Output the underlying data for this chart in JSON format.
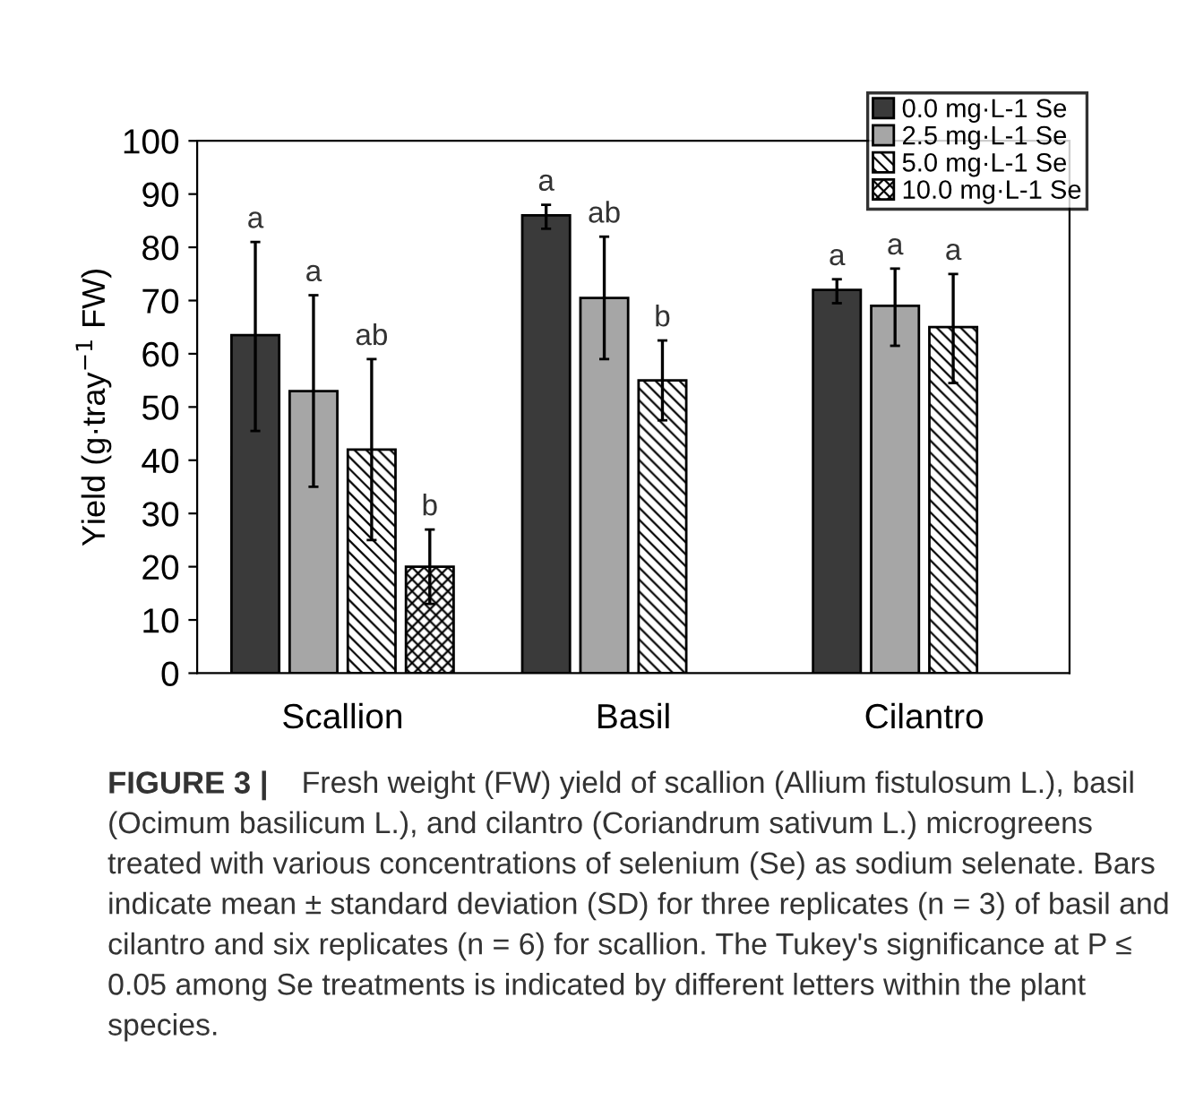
{
  "chart_data": {
    "type": "bar",
    "categories": [
      "Scallion",
      "Basil",
      "Cilantro"
    ],
    "ylabel": "Yield (g·tray$^{−1}$ FW)",
    "series": [
      {
        "name": "0.0 mg·L-1 Se",
        "color": "#3a3a3a",
        "values": [
          63.5,
          86,
          72
        ],
        "errors": [
          [
            45.5,
            81
          ],
          [
            83.5,
            88
          ],
          [
            69.5,
            74
          ]
        ]
      },
      {
        "name": "2.5 mg·L-1 Se",
        "color": "#a6a6a6",
        "values": [
          53,
          70.5,
          69
        ],
        "errors": [
          [
            35,
            71
          ],
          [
            59,
            82
          ],
          [
            61.5,
            76
          ]
        ]
      },
      {
        "name": "5.0 mg·L-1 Se",
        "color": "#000000",
        "values": [
          42,
          55,
          65
        ],
        "errors": [
          [
            25,
            59
          ],
          [
            47.5,
            62.5
          ],
          [
            54.5,
            75
          ]
        ]
      },
      {
        "name": "10.0 mg·L-1 Se",
        "color": "#000000",
        "values": [
          20,
          null,
          null
        ],
        "errors": [
          [
            13,
            27
          ],
          null,
          null
        ]
      }
    ],
    "ylim": [
      0,
      100
    ],
    "yticks": [
      0,
      10,
      20,
      30,
      40,
      50,
      60,
      70,
      80,
      90,
      100
    ],
    "grid": false,
    "legend": "top right",
    "annotations": [
      "a",
      "a",
      "ab",
      "b",
      "a",
      "ab",
      "b",
      "a",
      "a",
      "a",
      "FIGURE 3 |",
      "Fresh weight (FW) yield of scallion (Allium fistulosum L.), basil (Ocimum basilicum L.), and cilantro (Coriandrum sativum L.) microgreens treated with various concentrations of selenium (Se) as sodium selenate. Bars indicate mean ± standard deviation (SD) for three replicates (n = 3) of basil and cilantro and six replicates (n = 6) for scallion. The Tukey's significance at P ≤ 0.05 among Se treatments is indicated by different letters within the plant species."
    ]
  }
}
